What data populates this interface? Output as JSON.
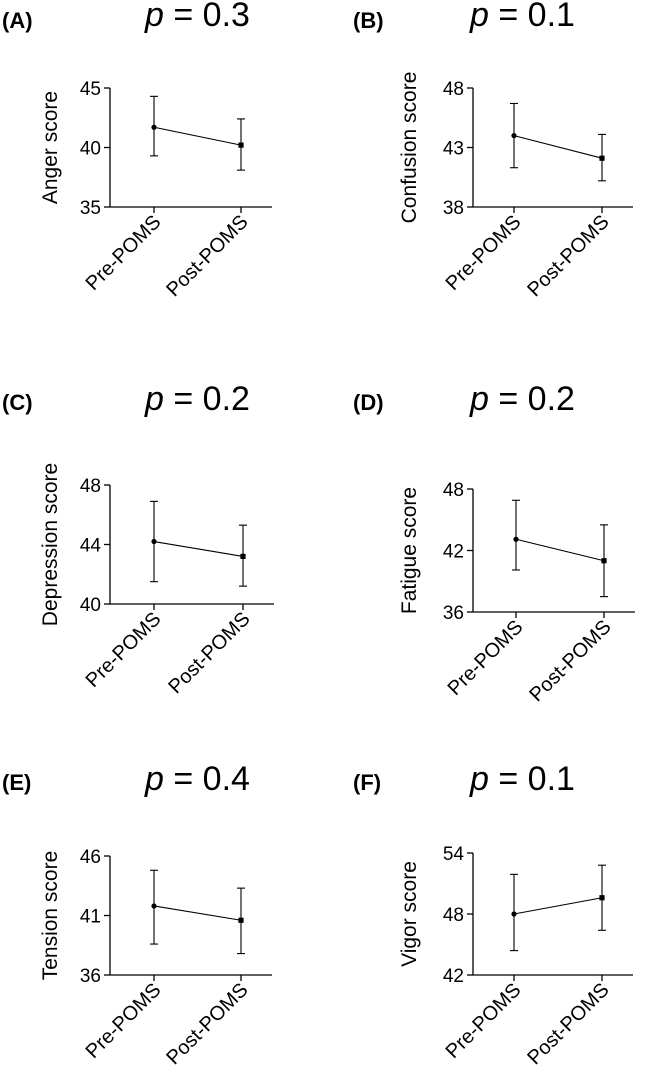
{
  "chart_data": [
    {
      "type": "line",
      "panel_label": "(A)",
      "p_symbol": "p",
      "p_text": " = 0.3",
      "categories": [
        "Pre-POMS",
        "Post-POMS"
      ],
      "ylabel": "Anger score",
      "ylim": [
        35,
        45
      ],
      "yticks": [
        35,
        40,
        45
      ],
      "values": [
        41.7,
        40.2
      ],
      "err_upper": [
        44.3,
        42.4
      ],
      "err_lower": [
        39.3,
        38.1
      ]
    },
    {
      "type": "line",
      "panel_label": "(B)",
      "p_symbol": "p",
      "p_text": " = 0.1",
      "categories": [
        "Pre-POMS",
        "Post-POMS"
      ],
      "ylabel": "Confusion score",
      "ylim": [
        38,
        48
      ],
      "yticks": [
        38,
        43,
        48
      ],
      "values": [
        44.0,
        42.1
      ],
      "err_upper": [
        46.7,
        44.1
      ],
      "err_lower": [
        41.3,
        40.2
      ]
    },
    {
      "type": "line",
      "panel_label": "(C)",
      "p_symbol": "p",
      "p_text": " = 0.2",
      "categories": [
        "Pre-POMS",
        "Post-POMS"
      ],
      "ylabel": "Depression score",
      "ylim": [
        40,
        48
      ],
      "yticks": [
        40,
        44,
        48
      ],
      "values": [
        44.2,
        43.2
      ],
      "err_upper": [
        46.9,
        45.3
      ],
      "err_lower": [
        41.5,
        41.2
      ]
    },
    {
      "type": "line",
      "panel_label": "(D)",
      "p_symbol": "p",
      "p_text": " = 0.2",
      "categories": [
        "Pre-POMS",
        "Post-POMS"
      ],
      "ylabel": "Fatigue score",
      "ylim": [
        36,
        48
      ],
      "yticks": [
        36,
        42,
        48
      ],
      "values": [
        43.1,
        41.0
      ],
      "err_upper": [
        46.9,
        44.5
      ],
      "err_lower": [
        40.1,
        37.5
      ]
    },
    {
      "type": "line",
      "panel_label": "(E)",
      "p_symbol": "p",
      "p_text": " = 0.4",
      "categories": [
        "Pre-POMS",
        "Post-POMS"
      ],
      "ylabel": "Tension score",
      "ylim": [
        36,
        46
      ],
      "yticks": [
        36,
        41,
        46
      ],
      "values": [
        41.8,
        40.6
      ],
      "err_upper": [
        44.8,
        43.3
      ],
      "err_lower": [
        38.6,
        37.8
      ]
    },
    {
      "type": "line",
      "panel_label": "(F)",
      "p_symbol": "p",
      "p_text": " = 0.1",
      "categories": [
        "Pre-POMS",
        "Post-POMS"
      ],
      "ylabel": "Vigor score",
      "ylim": [
        42,
        54
      ],
      "yticks": [
        42,
        48,
        54
      ],
      "values": [
        48.0,
        49.6
      ],
      "err_upper": [
        51.9,
        52.8
      ],
      "err_lower": [
        44.4,
        46.4
      ]
    }
  ]
}
